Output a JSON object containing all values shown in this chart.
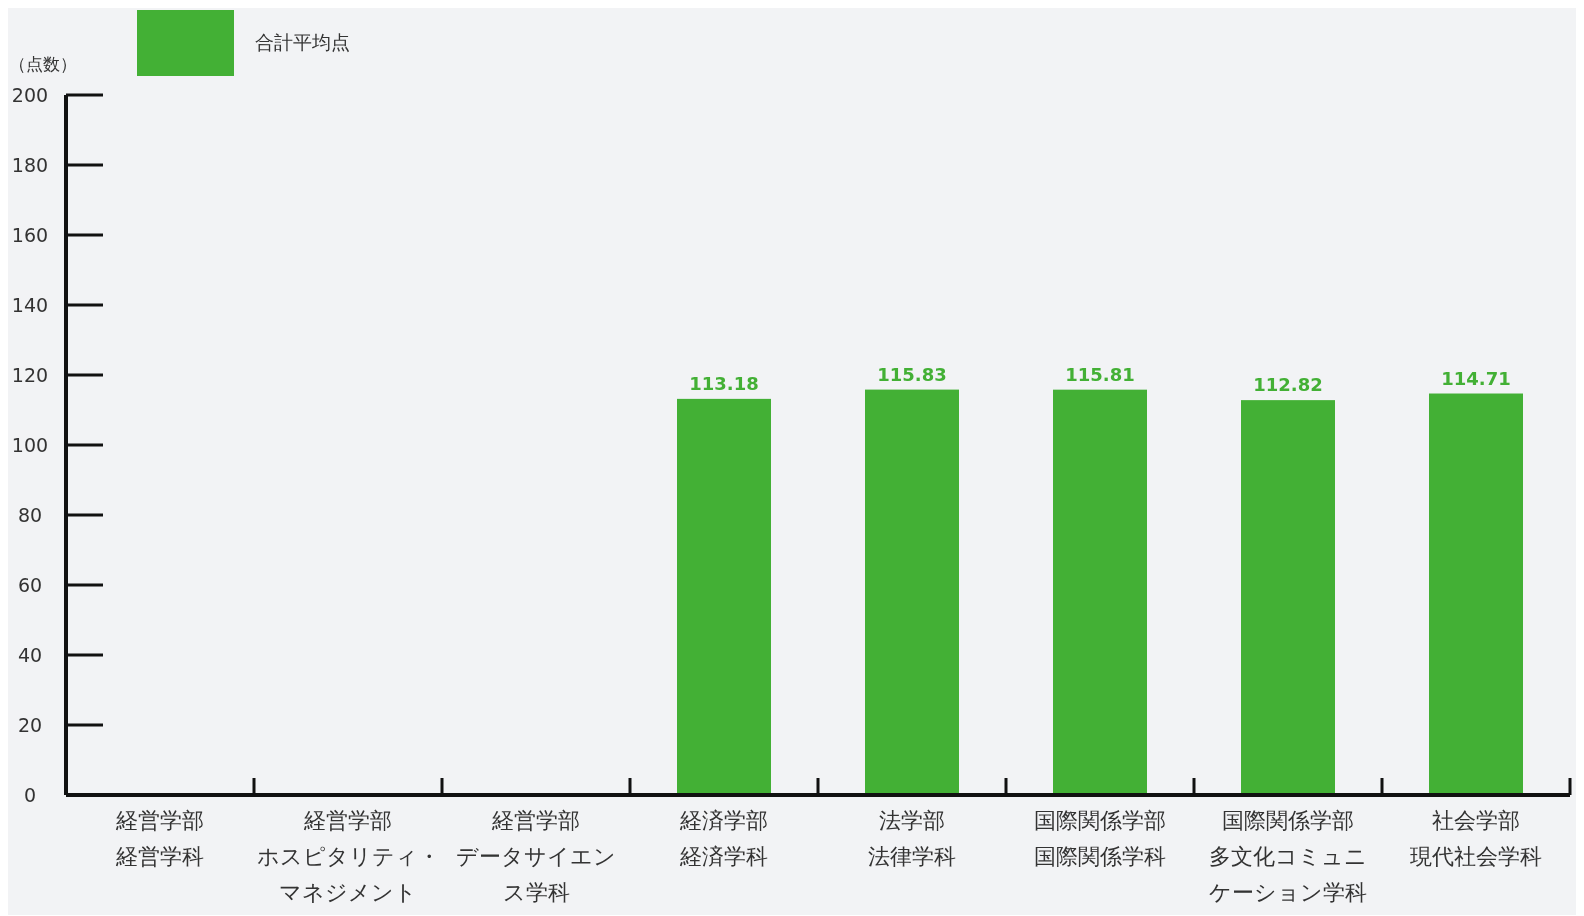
{
  "chart_data": {
    "type": "bar",
    "ylabel": "（点数）",
    "categories": [
      "経営学部経営学科",
      "経営学部ホスピタリティ・マネジメント",
      "経営学部データサイエンス学科",
      "経済学部経済学科",
      "法学部法律学科",
      "国際関係学部国際関係学科",
      "国際関係学部多文化コミュニケーション学科",
      "社会学部現代社会学科"
    ],
    "series": [
      {
        "name": "合計平均点",
        "color": "#43b035",
        "values": [
          null,
          null,
          null,
          113.18,
          115.83,
          115.81,
          112.82,
          114.71
        ]
      }
    ],
    "ylim": [
      0,
      200
    ],
    "yticks": [
      0,
      20,
      40,
      60,
      80,
      100,
      120,
      140,
      160,
      180,
      200
    ],
    "data_labels": true,
    "legend": "top left",
    "grid": false
  }
}
